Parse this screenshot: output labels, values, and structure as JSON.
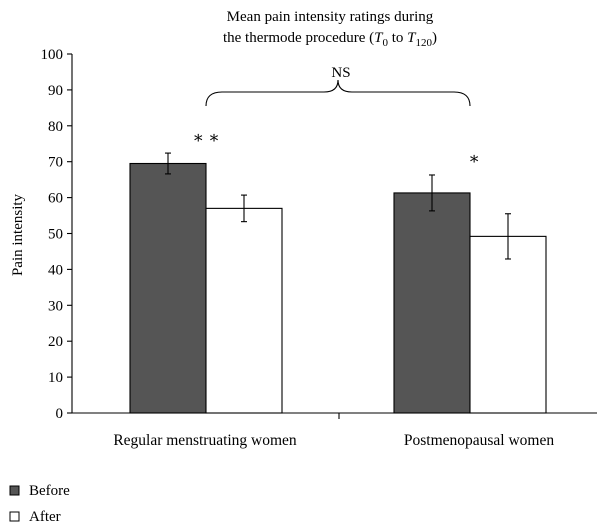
{
  "chart_data": {
    "type": "bar",
    "title_line1": "Mean pain intensity ratings during",
    "title_line2_prefix": "the thermode procedure (",
    "title_t": "T",
    "title_sub_start": "0",
    "title_to": " to ",
    "title_sub_end": "120",
    "title_close": ")",
    "ylabel": "Pain intensity",
    "xlabel": "",
    "ylim": [
      0,
      100
    ],
    "yticks": [
      "0",
      "10",
      "20",
      "30",
      "40",
      "50",
      "60",
      "70",
      "80",
      "90",
      "100"
    ],
    "categories": [
      "Regular menstruating women",
      "Postmenopausal women"
    ],
    "series": [
      {
        "name": "Before",
        "color": "#555555",
        "values": [
          69.5,
          61.3
        ],
        "errors": [
          2.9,
          5.0
        ]
      },
      {
        "name": "After",
        "color": "#ffffff",
        "values": [
          57.0,
          49.2
        ],
        "errors": [
          3.7,
          6.3
        ]
      }
    ],
    "annotations": {
      "significance": [
        "∗ ∗",
        "∗"
      ],
      "bracket_label": "NS"
    },
    "legend_position": "bottom-left",
    "grid": false
  }
}
